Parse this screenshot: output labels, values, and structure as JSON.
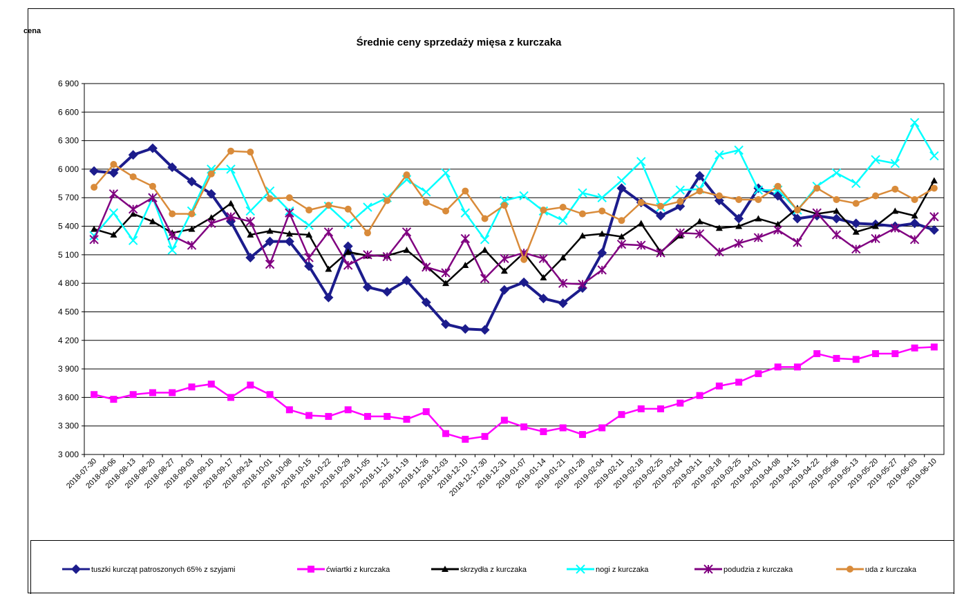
{
  "chart_data": {
    "type": "line",
    "title": "Średnie ceny sprzedaży mięsa z kurczaka",
    "y_label": "cena",
    "categories": [
      "2018-07-30",
      "2018-08-06",
      "2018-08-13",
      "2018-08-20",
      "2018-08-27",
      "2018-09-03",
      "2018-09-10",
      "2018-09-17",
      "2018-09-24",
      "2018-10-01",
      "2018-10-08",
      "2018-10-15",
      "2018-10-22",
      "2018-10-29",
      "2018-11-05",
      "2018-11-12",
      "2018-11-19",
      "2018-11-26",
      "2018-12-03",
      "2018-12-10",
      "2018-12-17-30",
      "2018-12-31",
      "2019-01-07",
      "2019-01-14",
      "2019-01-21",
      "2019-01-28",
      "2019-02-04",
      "2019-02-11",
      "2019-02-18",
      "2019-02-25",
      "2019-03-04",
      "2019-03-11",
      "2019-03-18",
      "2019-03-25",
      "2019-04-01",
      "2019-04-08",
      "2019-04-15",
      "2019-04-22",
      "2019-05-06",
      "2019-05-13",
      "2019-05-20",
      "2019-05-27",
      "2019-06-03",
      "2019-06-10"
    ],
    "series": [
      {
        "name": "tuszki kurcząt patroszonych 65% z szyjami",
        "color": "#1c1c8c",
        "marker": "diamond",
        "values": [
          5980,
          5960,
          6150,
          6220,
          6020,
          5870,
          5740,
          5450,
          5070,
          5240,
          5240,
          4980,
          4650,
          5190,
          4760,
          4710,
          4830,
          4600,
          4370,
          4320,
          4310,
          4730,
          4810,
          4640,
          4590,
          4750,
          5120,
          5800,
          5650,
          5510,
          5610,
          5930,
          5670,
          5480,
          5800,
          5720,
          5480,
          5510,
          5480,
          5430,
          5420,
          5400,
          5430,
          5360
        ]
      },
      {
        "name": "ćwiartki z kurczaka",
        "color": "#ff00ff",
        "marker": "square",
        "values": [
          3630,
          3580,
          3630,
          3650,
          3650,
          3710,
          3740,
          3600,
          3730,
          3630,
          3470,
          3410,
          3400,
          3470,
          3400,
          3400,
          3370,
          3450,
          3220,
          3160,
          3190,
          3360,
          3290,
          3240,
          3280,
          3210,
          3280,
          3420,
          3480,
          3480,
          3540,
          3620,
          3720,
          3760,
          3850,
          3920,
          3920,
          4060,
          4010,
          4000,
          4060,
          4060,
          4120,
          4130
        ]
      },
      {
        "name": "skrzydła z kurczaka",
        "color": "#000000",
        "marker": "triangle",
        "values": [
          5370,
          5310,
          5530,
          5450,
          5330,
          5370,
          5490,
          5640,
          5310,
          5350,
          5320,
          5310,
          4950,
          5130,
          5090,
          5090,
          5150,
          4980,
          4800,
          4990,
          5150,
          4930,
          5120,
          4860,
          5070,
          5300,
          5320,
          5290,
          5430,
          5130,
          5300,
          5450,
          5380,
          5400,
          5480,
          5420,
          5590,
          5530,
          5560,
          5340,
          5400,
          5560,
          5510,
          5880
        ]
      },
      {
        "name": "nogi z kurczaka",
        "color": "#00ffff",
        "marker": "cross",
        "values": [
          5300,
          5540,
          5250,
          5700,
          5150,
          5560,
          6000,
          6000,
          5560,
          5770,
          5560,
          5410,
          5610,
          5420,
          5600,
          5700,
          5890,
          5760,
          5960,
          5540,
          5260,
          5670,
          5720,
          5560,
          5460,
          5750,
          5700,
          5880,
          6080,
          5600,
          5780,
          5790,
          6150,
          6200,
          5780,
          5780,
          5570,
          5820,
          5960,
          5850,
          6100,
          6060,
          6490,
          6140
        ]
      },
      {
        "name": "podudzia z kurczaka",
        "color": "#800080",
        "marker": "star",
        "values": [
          5260,
          5740,
          5580,
          5700,
          5300,
          5200,
          5430,
          5500,
          5450,
          5000,
          5540,
          5070,
          5340,
          4990,
          5100,
          5080,
          5340,
          4970,
          4910,
          5270,
          4850,
          5060,
          5120,
          5060,
          4800,
          4790,
          4940,
          5210,
          5200,
          5120,
          5330,
          5320,
          5130,
          5220,
          5280,
          5360,
          5230,
          5540,
          5310,
          5160,
          5270,
          5380,
          5260,
          5500
        ]
      },
      {
        "name": "uda z kurczaka",
        "color": "#d98b3a",
        "marker": "circle",
        "values": [
          5810,
          6050,
          5920,
          5820,
          5530,
          5530,
          5950,
          6190,
          6180,
          5690,
          5700,
          5570,
          5620,
          5580,
          5330,
          5670,
          5940,
          5650,
          5560,
          5770,
          5480,
          5620,
          5050,
          5570,
          5600,
          5530,
          5560,
          5460,
          5650,
          5610,
          5660,
          5770,
          5720,
          5680,
          5680,
          5820,
          5570,
          5800,
          5680,
          5640,
          5720,
          5790,
          5680,
          5800
        ]
      }
    ],
    "ylim": [
      3000,
      6900
    ],
    "yticks": [
      {
        "value": 3000,
        "label": "3 000"
      },
      {
        "value": 3300,
        "label": "3 300"
      },
      {
        "value": 3600,
        "label": "3 600"
      },
      {
        "value": 3900,
        "label": "3 900"
      },
      {
        "value": 4200,
        "label": "4 200"
      },
      {
        "value": 4500,
        "label": "4 500"
      },
      {
        "value": 4800,
        "label": "4 800"
      },
      {
        "value": 5100,
        "label": "5 100"
      },
      {
        "value": 5400,
        "label": "5 400"
      },
      {
        "value": 5700,
        "label": "5 700"
      },
      {
        "value": 6000,
        "label": "6 000"
      },
      {
        "value": 6300,
        "label": "6 300"
      },
      {
        "value": 6600,
        "label": "6 600"
      },
      {
        "value": 6900,
        "label": "6 900"
      }
    ],
    "grid": true,
    "legend": "bottom"
  }
}
